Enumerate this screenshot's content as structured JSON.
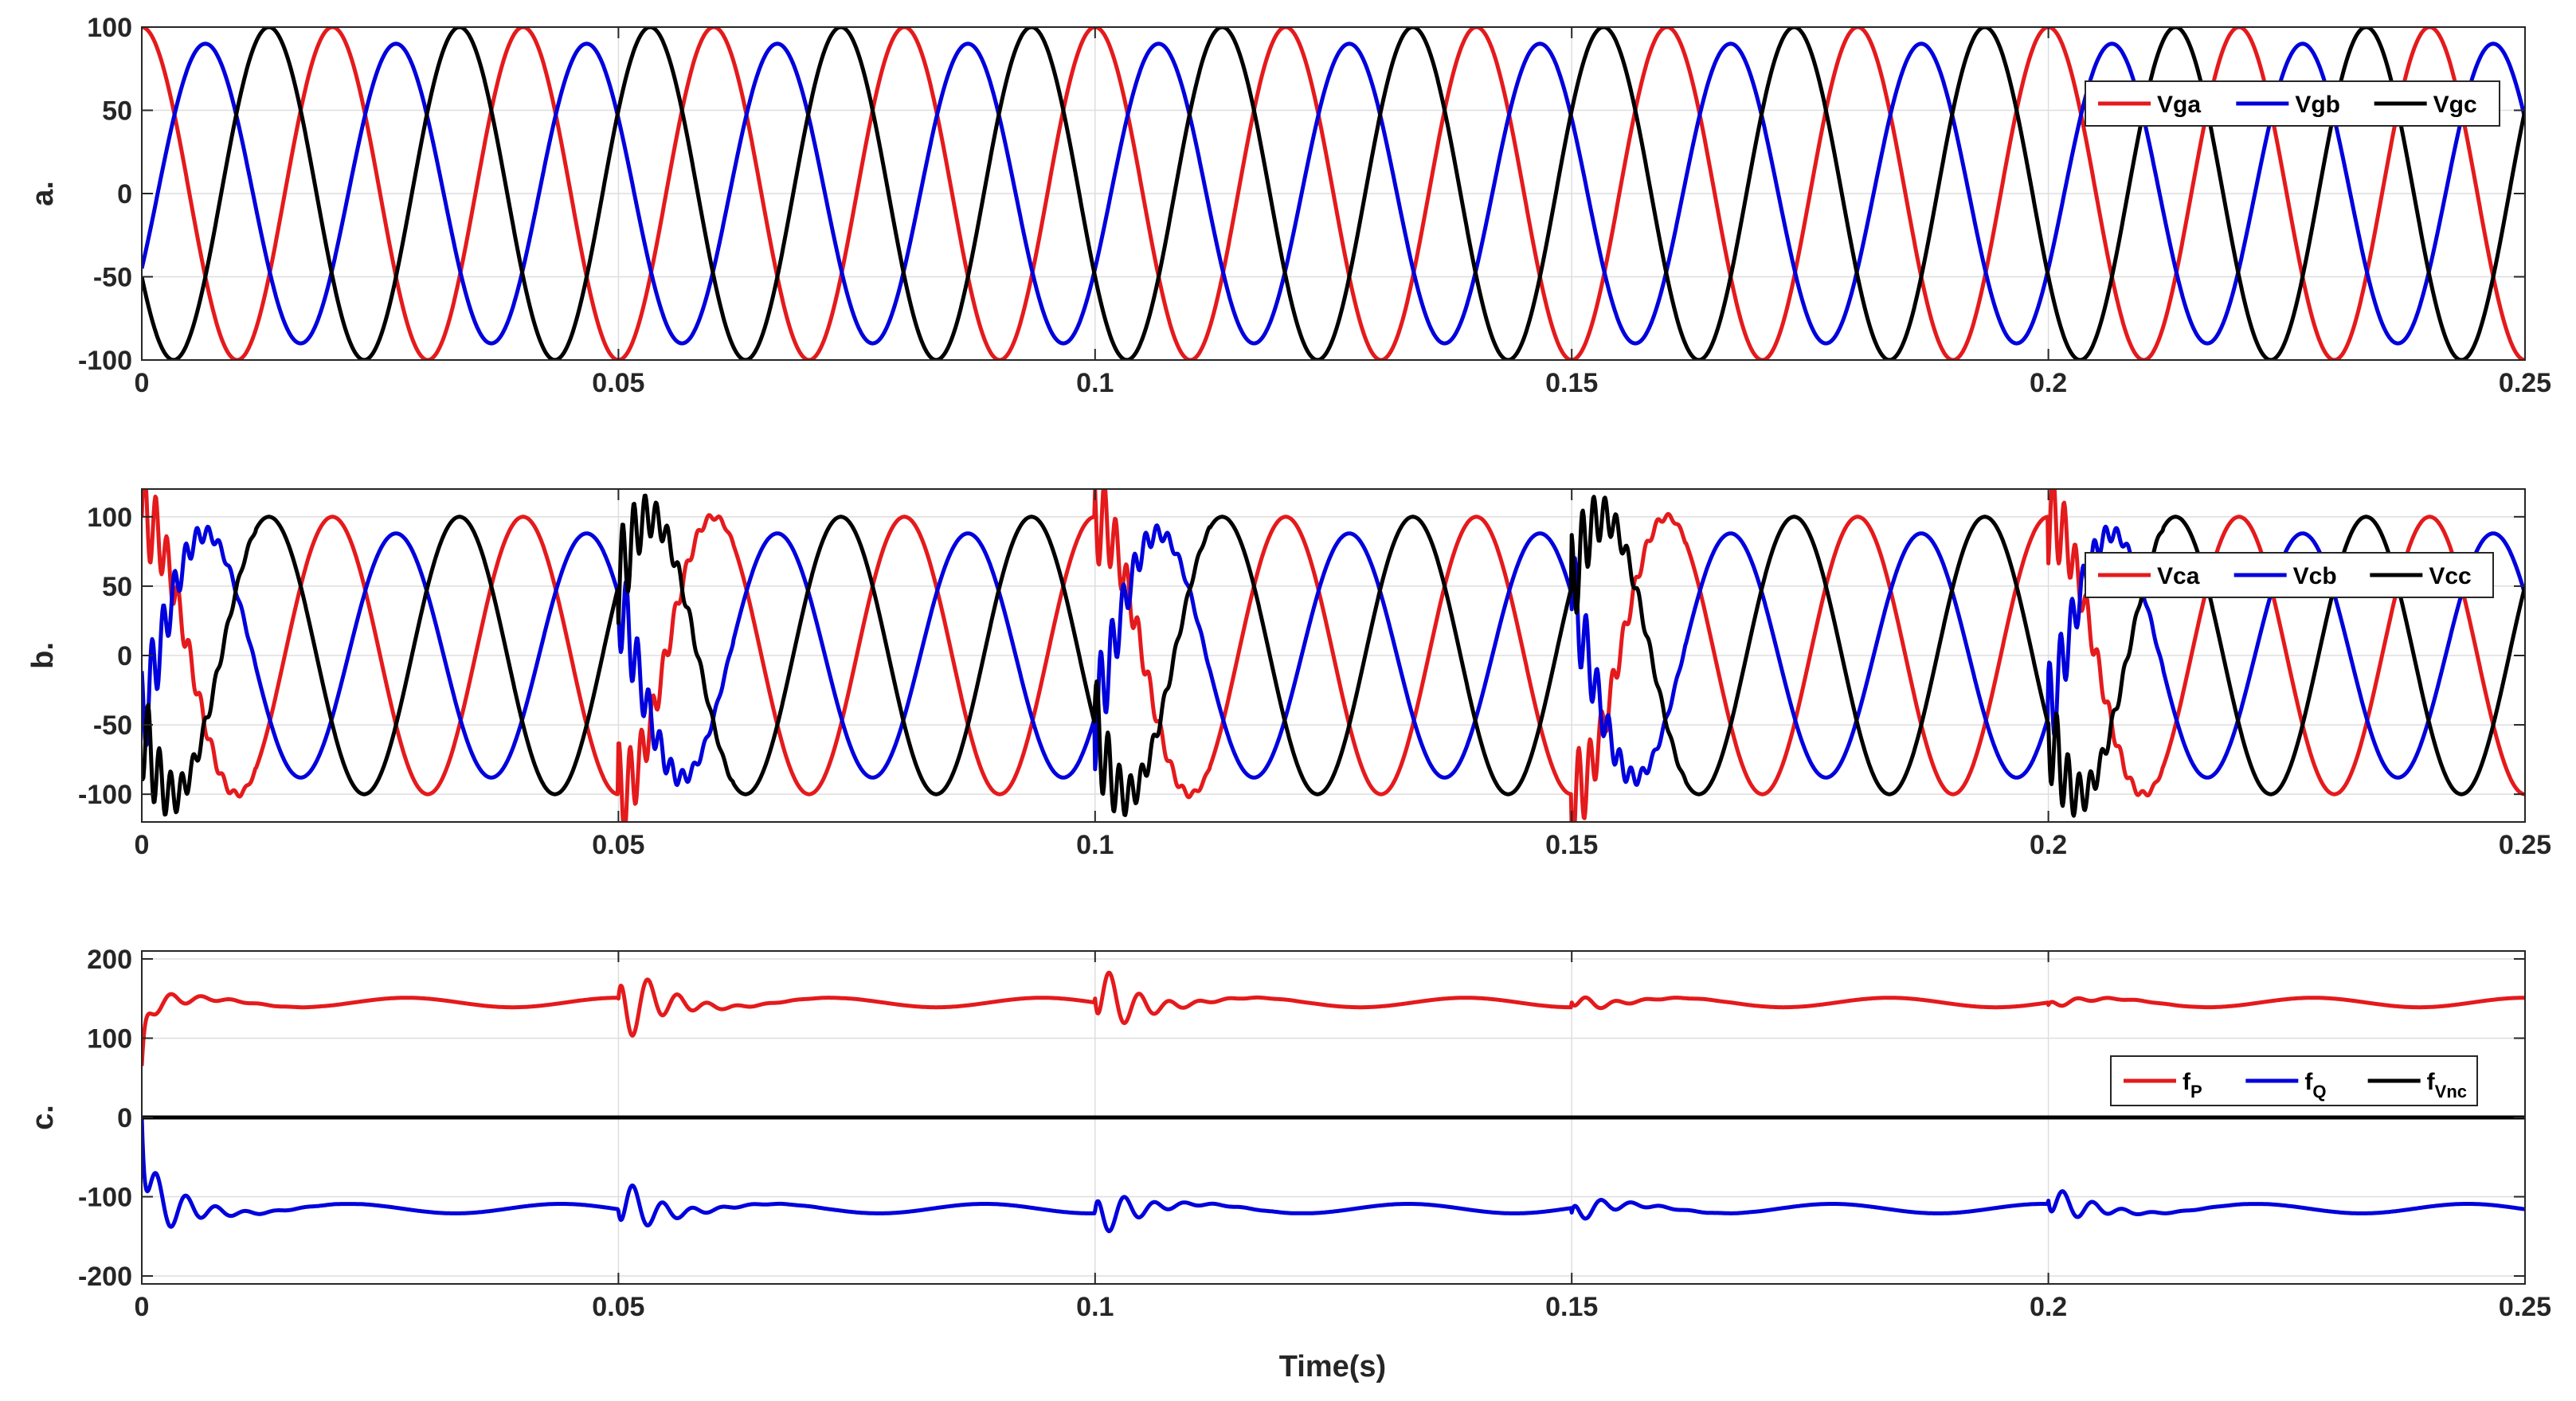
{
  "figure": {
    "xlabel": "Time(s)"
  },
  "chart_data": [
    {
      "type": "line",
      "panel_label": "a.",
      "xlim": [
        0,
        0.25
      ],
      "ylim": [
        -100,
        100
      ],
      "xticks": [
        0,
        0.05,
        0.1,
        0.15,
        0.2,
        0.25
      ],
      "xtick_labels": [
        "0",
        "0.05",
        "0.1",
        "0.15",
        "0.2",
        "0.25"
      ],
      "yticks": [
        -100,
        -50,
        0,
        50,
        100
      ],
      "ytick_labels": [
        "-100",
        "-50",
        "0",
        "50",
        "100"
      ],
      "grid": true,
      "legend_position": "top-right",
      "frequency_hz": 50,
      "series": [
        {
          "name": "Vga",
          "name_sub": "",
          "color": "#e41a1c",
          "kind": "sine",
          "amplitude": 100,
          "phase_deg": 90
        },
        {
          "name": "Vgb",
          "name_sub": "",
          "color": "#0000dd",
          "kind": "sine",
          "amplitude": 90,
          "phase_deg": -30
        },
        {
          "name": "Vgc",
          "name_sub": "",
          "color": "#000000",
          "kind": "sine",
          "amplitude": 100,
          "phase_deg": 210
        }
      ]
    },
    {
      "type": "line",
      "panel_label": "b.",
      "xlim": [
        0,
        0.25
      ],
      "ylim": [
        -120,
        120
      ],
      "xticks": [
        0,
        0.05,
        0.1,
        0.15,
        0.2,
        0.25
      ],
      "xtick_labels": [
        "0",
        "0.05",
        "0.1",
        "0.15",
        "0.2",
        "0.25"
      ],
      "yticks": [
        -100,
        -50,
        0,
        50,
        100
      ],
      "ytick_labels": [
        "-100",
        "-50",
        "0",
        "50",
        "100"
      ],
      "grid": true,
      "legend_position": "top-right",
      "frequency_hz": 50,
      "disturbance_times": [
        0,
        0.05,
        0.1,
        0.15,
        0.2
      ],
      "series": [
        {
          "name": "Vca",
          "name_sub": "",
          "color": "#e41a1c",
          "kind": "sine",
          "amplitude": 100,
          "phase_deg": 90
        },
        {
          "name": "Vcb",
          "name_sub": "",
          "color": "#0000dd",
          "kind": "sine",
          "amplitude": 88,
          "phase_deg": -30
        },
        {
          "name": "Vcc",
          "name_sub": "",
          "color": "#000000",
          "kind": "sine",
          "amplitude": 100,
          "phase_deg": 210
        }
      ]
    },
    {
      "type": "line",
      "panel_label": "c.",
      "xlim": [
        0,
        0.25
      ],
      "ylim": [
        -210,
        210
      ],
      "xticks": [
        0,
        0.05,
        0.1,
        0.15,
        0.2,
        0.25
      ],
      "xtick_labels": [
        "0",
        "0.05",
        "0.1",
        "0.15",
        "0.2",
        "0.25"
      ],
      "yticks": [
        -200,
        -100,
        0,
        100,
        200
      ],
      "ytick_labels": [
        "-200",
        "-100",
        "0",
        "100",
        "200"
      ],
      "grid": true,
      "legend_position": "right",
      "series": [
        {
          "name": "f",
          "name_sub": "P",
          "color": "#e41a1c",
          "kind": "damped",
          "base": 145,
          "events": [
            {
              "t": 0,
              "initial": 65,
              "peak": 165
            },
            {
              "t": 0.05,
              "initial": 150,
              "peak": 210
            },
            {
              "t": 0.1,
              "initial": 150,
              "peak": 88
            },
            {
              "t": 0.15,
              "initial": 145,
              "peak": 133
            },
            {
              "t": 0.2,
              "initial": 142,
              "peak": 152
            }
          ]
        },
        {
          "name": "f",
          "name_sub": "Q",
          "color": "#0000dd",
          "kind": "damped",
          "base": -115,
          "events": [
            {
              "t": 0,
              "initial": 0,
              "peak": -175
            },
            {
              "t": 0.05,
              "initial": -118,
              "peak": -160
            },
            {
              "t": 0.1,
              "initial": -118,
              "peak": -75
            },
            {
              "t": 0.15,
              "initial": -120,
              "peak": -95
            },
            {
              "t": 0.2,
              "initial": -105,
              "peak": -145
            }
          ]
        },
        {
          "name": "f",
          "name_sub": "Vnc",
          "color": "#000000",
          "kind": "constant",
          "value": 0
        }
      ]
    }
  ]
}
